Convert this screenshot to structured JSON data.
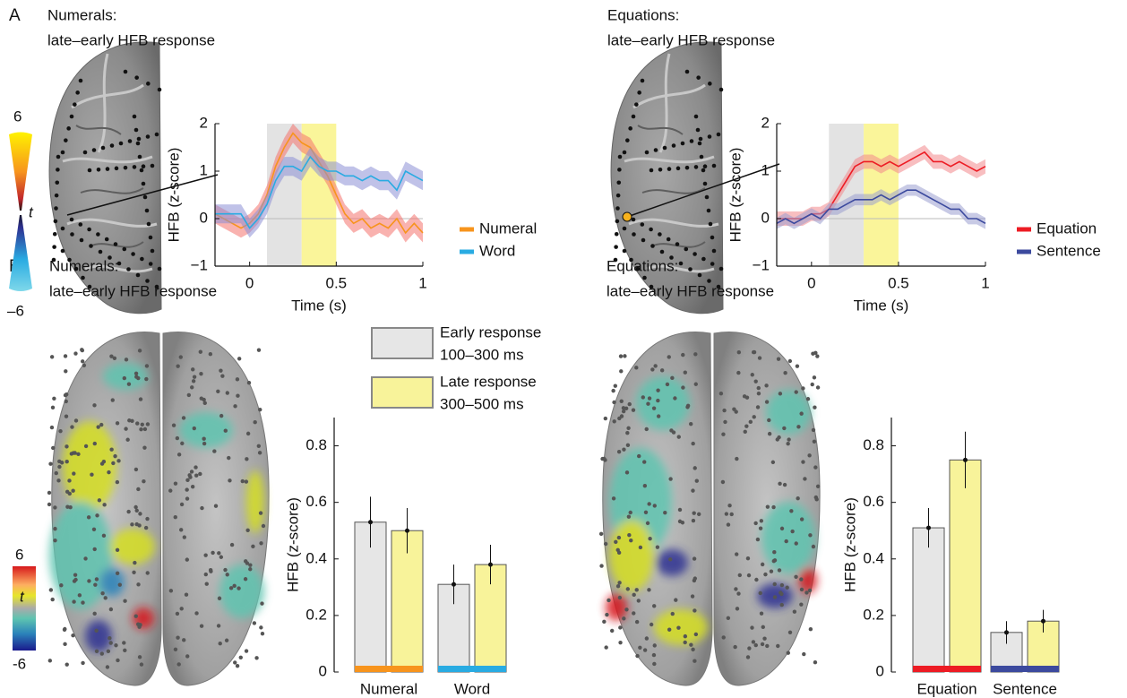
{
  "panel_labels": [
    "A",
    "B"
  ],
  "colorbars": [
    {
      "max": "6",
      "mid": "t",
      "min": "–6"
    },
    {
      "max": "6",
      "mid": "t",
      "min": "-6"
    }
  ],
  "chart_data": [
    {
      "type": "line",
      "title": "Numerals:",
      "subtitle": "late–early HFB response",
      "x_label": "Time (s)",
      "y_label": "HFB (z-score)",
      "x": [
        -0.2,
        -0.15,
        -0.1,
        -0.05,
        0,
        0.05,
        0.1,
        0.15,
        0.2,
        0.25,
        0.3,
        0.35,
        0.4,
        0.45,
        0.5,
        0.55,
        0.6,
        0.65,
        0.7,
        0.75,
        0.8,
        0.85,
        0.9,
        0.95,
        1
      ],
      "xlim": [
        -0.2,
        1
      ],
      "xticks": [
        0,
        0.5,
        1
      ],
      "ylim": [
        -1,
        2
      ],
      "yticks": [
        {
          "value": -1,
          "label": "−1"
        },
        0,
        1,
        2
      ],
      "windows": [
        {
          "range": [
            0.1,
            0.3
          ],
          "color": "#e3e3e3"
        },
        {
          "range": [
            0.3,
            0.5
          ],
          "color": "#faf59a"
        }
      ],
      "series": [
        {
          "name": "Numeral",
          "color": "#f7941d",
          "band_color": "#f4736d",
          "error": 0.2,
          "values": [
            0.1,
            0.0,
            -0.1,
            -0.2,
            -0.1,
            0.1,
            0.5,
            1.1,
            1.5,
            1.8,
            1.6,
            1.5,
            1.2,
            0.9,
            0.5,
            0.1,
            -0.1,
            0.0,
            -0.2,
            -0.1,
            -0.2,
            0.0,
            -0.3,
            -0.1,
            -0.3
          ]
        },
        {
          "name": "Word",
          "color": "#29abe2",
          "band_color": "#8d8fd6",
          "error": 0.2,
          "values": [
            0.1,
            0.1,
            0.1,
            0.1,
            -0.2,
            0.0,
            0.3,
            0.8,
            1.1,
            1.1,
            1.0,
            1.3,
            1.1,
            1.0,
            1.0,
            0.9,
            0.9,
            0.8,
            0.9,
            0.8,
            0.8,
            0.6,
            1.0,
            0.9,
            0.8
          ]
        }
      ]
    },
    {
      "type": "line",
      "title": "Equations:",
      "subtitle": "late–early HFB response",
      "x_label": "Time (s)",
      "y_label": "HFB (z-score)",
      "x": [
        -0.2,
        -0.15,
        -0.1,
        -0.05,
        0,
        0.05,
        0.1,
        0.15,
        0.2,
        0.25,
        0.3,
        0.35,
        0.4,
        0.45,
        0.5,
        0.55,
        0.6,
        0.65,
        0.7,
        0.75,
        0.8,
        0.85,
        0.9,
        0.95,
        1
      ],
      "xlim": [
        -0.2,
        1
      ],
      "xticks": [
        0,
        0.5,
        1
      ],
      "ylim": [
        -1,
        2
      ],
      "yticks": [
        {
          "value": -1,
          "label": "−1"
        },
        0,
        1,
        2
      ],
      "windows": [
        {
          "range": [
            0.1,
            0.3
          ],
          "color": "#e3e3e3"
        },
        {
          "range": [
            0.3,
            0.5
          ],
          "color": "#faf59a"
        }
      ],
      "series": [
        {
          "name": "Equation",
          "color": "#ed1c24",
          "band_color": "#f2888c",
          "error": 0.15,
          "values": [
            0.0,
            0.0,
            0.0,
            0.0,
            0.1,
            0.1,
            0.2,
            0.5,
            0.8,
            1.1,
            1.2,
            1.2,
            1.1,
            1.2,
            1.1,
            1.2,
            1.3,
            1.4,
            1.2,
            1.2,
            1.1,
            1.2,
            1.1,
            1.0,
            1.1
          ]
        },
        {
          "name": "Sentence",
          "color": "#3c4a9e",
          "band_color": "#9a9fd0",
          "error": 0.12,
          "values": [
            -0.1,
            0.0,
            -0.1,
            0.0,
            0.1,
            0.0,
            0.2,
            0.2,
            0.3,
            0.4,
            0.4,
            0.4,
            0.5,
            0.4,
            0.5,
            0.6,
            0.6,
            0.5,
            0.4,
            0.3,
            0.2,
            0.2,
            0.0,
            0.0,
            -0.1
          ]
        }
      ]
    },
    {
      "type": "bar",
      "title": "Numerals:",
      "subtitle": "late–early HFB response",
      "y_label": "HFB (z-score)",
      "categories": [
        "Numeral",
        "Word"
      ],
      "category_colors": [
        "#f7941d",
        "#29abe2"
      ],
      "ylim": [
        0,
        0.9
      ],
      "yticks": [
        0,
        0.2,
        0.4,
        0.6,
        0.8
      ],
      "series": [
        {
          "name": "Early response",
          "window": "100–300 ms",
          "color": "#e6e6e6",
          "values": [
            0.53,
            0.31
          ],
          "errors": [
            0.09,
            0.07
          ]
        },
        {
          "name": "Late response",
          "window": "300–500 ms",
          "color": "#f8f39a",
          "values": [
            0.5,
            0.38
          ],
          "errors": [
            0.08,
            0.07
          ]
        }
      ]
    },
    {
      "type": "bar",
      "title": "Equations:",
      "subtitle": "late–early HFB response",
      "y_label": "HFB (z-score)",
      "categories": [
        "Equation",
        "Sentence"
      ],
      "category_colors": [
        "#ed1c24",
        "#3c4a9e"
      ],
      "ylim": [
        0,
        0.9
      ],
      "yticks": [
        0,
        0.2,
        0.4,
        0.6,
        0.8
      ],
      "series": [
        {
          "color": "#e6e6e6",
          "values": [
            0.51,
            0.14
          ],
          "errors": [
            0.07,
            0.04
          ]
        },
        {
          "color": "#f8f39a",
          "values": [
            0.75,
            0.18
          ],
          "errors": [
            0.1,
            0.04
          ]
        }
      ]
    }
  ]
}
